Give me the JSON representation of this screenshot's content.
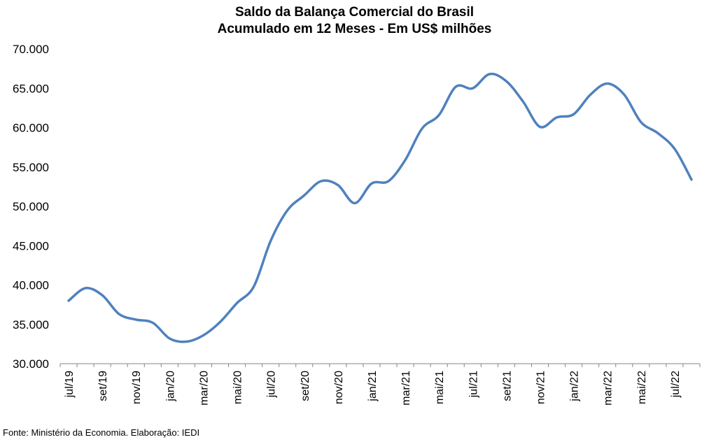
{
  "chart_data": {
    "type": "line",
    "title": "Saldo da Balança Comercial do Brasil",
    "subtitle": "Acumulado em 12 Meses - Em US$ milhões",
    "source": "Fonte: Ministério da Economia. Elaboração: IEDI",
    "ylim": [
      30000,
      70000
    ],
    "y_ticks": [
      "30.000",
      "35.000",
      "40.000",
      "45.000",
      "50.000",
      "55.000",
      "60.000",
      "65.000",
      "70.000"
    ],
    "x_tick_labels": [
      "jul/19",
      "set/19",
      "nov/19",
      "jan/20",
      "mar/20",
      "mai/20",
      "jul/20",
      "set/20",
      "nov/20",
      "jan/21",
      "mar/21",
      "mai/21",
      "jul/21",
      "set/21",
      "nov/21",
      "jan/22",
      "mar/22",
      "mai/22",
      "jul/22"
    ],
    "grid": false,
    "line_color": "#4F81BD",
    "series": [
      {
        "x": [
          "jul/19",
          "ago/19",
          "set/19",
          "out/19",
          "nov/19",
          "dez/19",
          "jan/20",
          "fev/20",
          "mar/20",
          "abr/20",
          "mai/20",
          "jun/20",
          "jul/20",
          "ago/20",
          "set/20",
          "out/20",
          "nov/20",
          "dez/20",
          "jan/21",
          "fev/21",
          "mar/21",
          "abr/21",
          "mai/21",
          "jun/21",
          "jul/21",
          "ago/21",
          "set/21",
          "out/21",
          "nov/21",
          "dez/21",
          "jan/22",
          "fev/22",
          "mar/22",
          "abr/22",
          "mai/22",
          "jun/22",
          "jul/22",
          "ago/22"
        ],
        "values": [
          38000,
          39600,
          38700,
          36300,
          35600,
          35200,
          33200,
          32800,
          33600,
          35300,
          37700,
          39800,
          45600,
          49500,
          51400,
          53200,
          52700,
          50400,
          52900,
          53200,
          55900,
          59900,
          61600,
          65200,
          65000,
          66800,
          65900,
          63300,
          60100,
          61300,
          61700,
          64200,
          65600,
          64200,
          60700,
          59300,
          57300,
          53400
        ]
      }
    ]
  }
}
